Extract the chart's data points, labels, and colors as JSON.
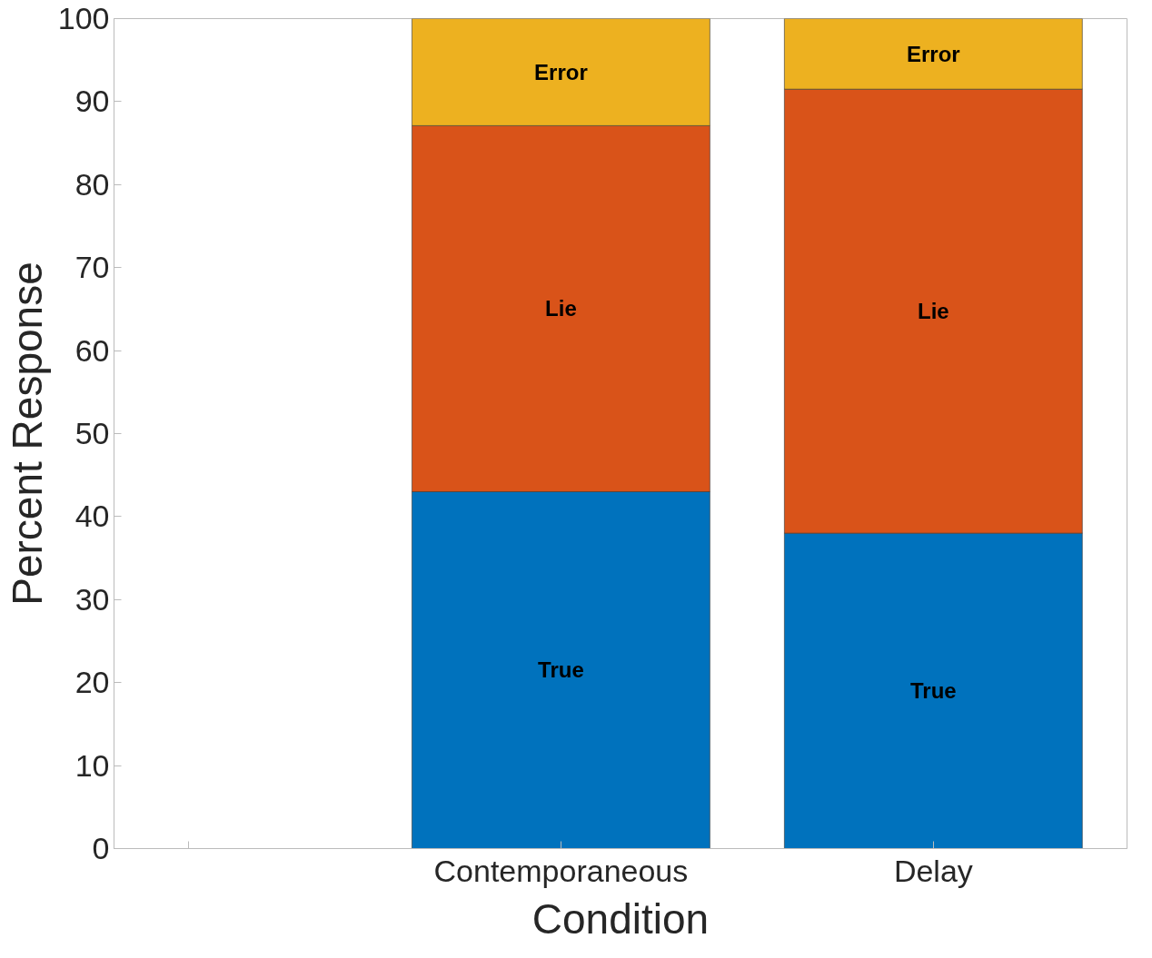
{
  "chart_data": {
    "type": "bar",
    "stacked": true,
    "categories": [
      null,
      "Contemporaneous",
      "Delay"
    ],
    "series": [
      {
        "name": "True",
        "color": "#0072bd",
        "values": [
          null,
          43,
          38
        ]
      },
      {
        "name": "Lie",
        "color": "#d95319",
        "values": [
          null,
          44.1,
          53.5
        ]
      },
      {
        "name": "Error",
        "color": "#edb120",
        "values": [
          null,
          12.9,
          8.5
        ]
      }
    ],
    "xlabel": "Condition",
    "ylabel": "Percent Response",
    "ylim": [
      0,
      100
    ],
    "yticks": [
      0,
      10,
      20,
      30,
      40,
      50,
      60,
      70,
      80,
      90,
      100
    ],
    "grid": false
  }
}
